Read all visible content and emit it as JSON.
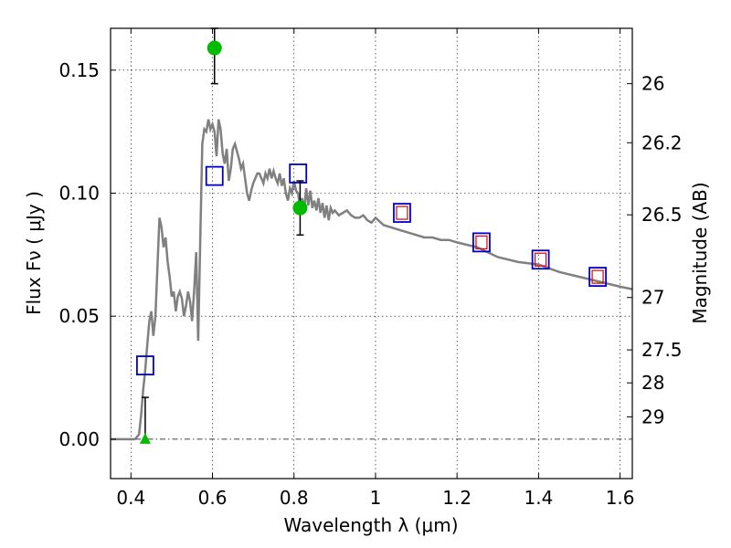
{
  "chart_data": {
    "type": "scatter",
    "xlabel": "Wavelength  λ (μm)",
    "ylabel": "Flux  Fν  ( μJy )",
    "ylabel_right": "Magnitude (AB)",
    "xlim": [
      0.35,
      1.63
    ],
    "ylim": [
      -0.016,
      0.167
    ],
    "grid": true,
    "x_ticks": [
      {
        "value": 0.4,
        "label": "0.4"
      },
      {
        "value": 0.6,
        "label": "0.6"
      },
      {
        "value": 0.8,
        "label": "0.8"
      },
      {
        "value": 1.0,
        "label": "1"
      },
      {
        "value": 1.2,
        "label": "1.2"
      },
      {
        "value": 1.4,
        "label": "1.4"
      },
      {
        "value": 1.6,
        "label": "1.6"
      }
    ],
    "y_ticks": [
      {
        "value": 0.0,
        "label": "0.00"
      },
      {
        "value": 0.05,
        "label": "0.05"
      },
      {
        "value": 0.1,
        "label": "0.10"
      },
      {
        "value": 0.15,
        "label": "0.15"
      }
    ],
    "right_ticks": [
      {
        "flux": 0.1445,
        "label": "26"
      },
      {
        "flux": 0.1205,
        "label": "26.2"
      },
      {
        "flux": 0.0912,
        "label": "26.5"
      },
      {
        "flux": 0.0576,
        "label": "27"
      },
      {
        "flux": 0.0363,
        "label": "27.5"
      },
      {
        "flux": 0.0229,
        "label": "28"
      },
      {
        "flux": 0.0091,
        "label": "29"
      }
    ],
    "colors": {
      "sed": "#808080",
      "model_box": "#0000cc",
      "inner_box": "#dd0000",
      "observed": "#00bb00",
      "errorbar": "#000000"
    },
    "sed_curve": {
      "x": [
        0.35,
        0.41,
        0.42,
        0.425,
        0.43,
        0.435,
        0.44,
        0.445,
        0.45,
        0.455,
        0.46,
        0.465,
        0.47,
        0.475,
        0.48,
        0.485,
        0.49,
        0.495,
        0.5,
        0.505,
        0.51,
        0.515,
        0.52,
        0.525,
        0.53,
        0.535,
        0.54,
        0.545,
        0.55,
        0.555,
        0.56,
        0.565,
        0.57,
        0.575,
        0.58,
        0.585,
        0.59,
        0.595,
        0.6,
        0.605,
        0.61,
        0.615,
        0.62,
        0.625,
        0.63,
        0.635,
        0.64,
        0.645,
        0.65,
        0.655,
        0.66,
        0.665,
        0.67,
        0.675,
        0.68,
        0.685,
        0.69,
        0.695,
        0.7,
        0.705,
        0.71,
        0.715,
        0.72,
        0.725,
        0.73,
        0.735,
        0.74,
        0.745,
        0.75,
        0.755,
        0.76,
        0.765,
        0.77,
        0.775,
        0.78,
        0.785,
        0.79,
        0.795,
        0.8,
        0.805,
        0.81,
        0.815,
        0.82,
        0.825,
        0.83,
        0.835,
        0.84,
        0.845,
        0.85,
        0.855,
        0.86,
        0.865,
        0.87,
        0.875,
        0.88,
        0.885,
        0.89,
        0.895,
        0.9,
        0.91,
        0.92,
        0.93,
        0.94,
        0.95,
        0.96,
        0.97,
        0.98,
        0.99,
        1.0,
        1.02,
        1.04,
        1.06,
        1.08,
        1.1,
        1.12,
        1.14,
        1.16,
        1.18,
        1.2,
        1.25,
        1.3,
        1.35,
        1.4,
        1.45,
        1.5,
        1.55,
        1.6,
        1.63
      ],
      "y": [
        0.0,
        0.0,
        0.002,
        0.01,
        0.02,
        0.028,
        0.038,
        0.048,
        0.052,
        0.042,
        0.05,
        0.07,
        0.09,
        0.086,
        0.078,
        0.082,
        0.072,
        0.066,
        0.058,
        0.06,
        0.052,
        0.058,
        0.06,
        0.057,
        0.05,
        0.054,
        0.06,
        0.056,
        0.048,
        0.06,
        0.076,
        0.04,
        0.08,
        0.12,
        0.126,
        0.125,
        0.13,
        0.126,
        0.128,
        0.125,
        0.115,
        0.13,
        0.126,
        0.116,
        0.112,
        0.118,
        0.105,
        0.11,
        0.118,
        0.12,
        0.117,
        0.114,
        0.11,
        0.112,
        0.106,
        0.1,
        0.097,
        0.101,
        0.104,
        0.106,
        0.108,
        0.108,
        0.106,
        0.104,
        0.108,
        0.106,
        0.11,
        0.106,
        0.109,
        0.106,
        0.104,
        0.108,
        0.103,
        0.106,
        0.1,
        0.097,
        0.102,
        0.1,
        0.105,
        0.101,
        0.1,
        0.094,
        0.098,
        0.093,
        0.102,
        0.095,
        0.101,
        0.094,
        0.097,
        0.093,
        0.098,
        0.092,
        0.096,
        0.09,
        0.095,
        0.089,
        0.094,
        0.092,
        0.093,
        0.091,
        0.092,
        0.093,
        0.091,
        0.09,
        0.09,
        0.091,
        0.089,
        0.088,
        0.09,
        0.087,
        0.086,
        0.085,
        0.084,
        0.083,
        0.082,
        0.082,
        0.081,
        0.081,
        0.08,
        0.078,
        0.074,
        0.072,
        0.071,
        0.068,
        0.066,
        0.064,
        0.062,
        0.061
      ]
    },
    "model_points": {
      "x": [
        0.435,
        0.605,
        0.81,
        1.065,
        1.26,
        1.405,
        1.545
      ],
      "y": [
        0.03,
        0.107,
        0.108,
        0.092,
        0.08,
        0.073,
        0.066
      ],
      "inner": [
        false,
        false,
        false,
        true,
        true,
        true,
        true
      ]
    },
    "observed_points": [
      {
        "x": 0.605,
        "y": 0.159,
        "yerr_low": 0.1445,
        "yerr_high": 0.167
      },
      {
        "x": 0.815,
        "y": 0.094,
        "yerr_low": 0.083,
        "yerr_high": 0.105
      }
    ],
    "upper_limit": {
      "x": 0.435,
      "y": 0.0,
      "yerr_high": 0.017
    }
  }
}
